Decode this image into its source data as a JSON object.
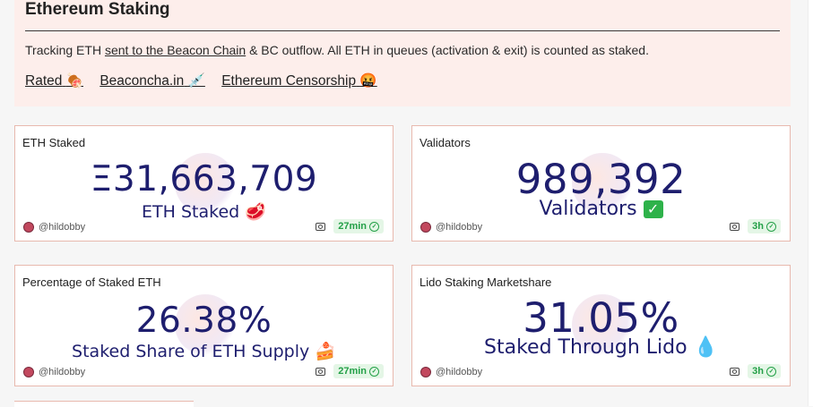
{
  "header": {
    "title": "Ethereum Staking",
    "desc_pre": "Tracking ETH ",
    "desc_link": "sent to the Beacon Chain",
    "desc_post": " & BC outflow. All ETH in queues (activation & exit) is counted as staked.",
    "links": [
      {
        "label": "Rated",
        "emoji": "🍖"
      },
      {
        "label": "Beaconcha.in",
        "emoji": "💉"
      },
      {
        "label": "Ethereum Censorship",
        "emoji": "🤬"
      }
    ]
  },
  "cards": [
    {
      "title": "ETH Staked",
      "value": "Ξ31,663,709",
      "subtitle": "ETH Staked",
      "sub_emoji": "🥩",
      "author": "@hildobby",
      "age": "27min"
    },
    {
      "title": "Validators",
      "value": "989,392",
      "subtitle": "Validators",
      "sub_emoji": "✓",
      "author": "@hildobby",
      "age": "3h"
    },
    {
      "title": "Percentage of Staked ETH",
      "value": "26.38%",
      "subtitle": "Staked Share of ETH Supply",
      "sub_emoji": "🍰",
      "author": "@hildobby",
      "age": "27min"
    },
    {
      "title": "Lido Staking Marketshare",
      "value": "31.05%",
      "subtitle": "Staked Through Lido",
      "sub_emoji": "💧",
      "author": "@hildobby",
      "age": "3h"
    }
  ]
}
